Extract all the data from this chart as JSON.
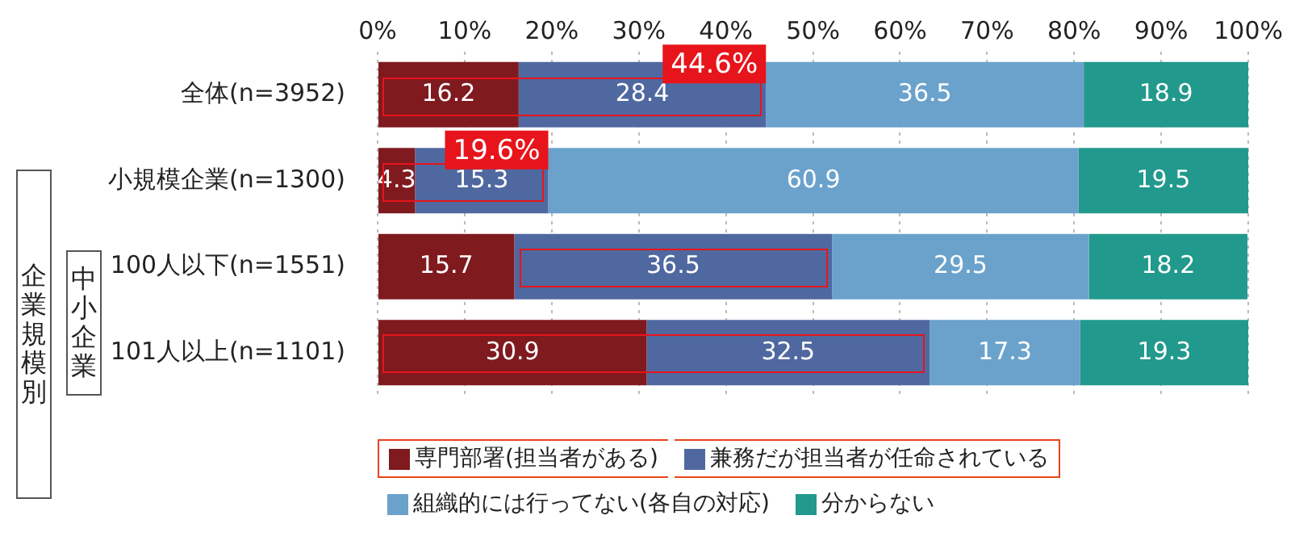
{
  "chart_data": {
    "type": "bar",
    "orientation": "horizontal",
    "stacked": true,
    "categories": [
      "全体(n=3952)",
      "小規模企業(n=1300)",
      "100人以下(n=1551)",
      "101人以上(n=1101)"
    ],
    "series": [
      {
        "name": "専門部署(担当者がある)",
        "color": "#7f1a1f",
        "values": [
          16.2,
          4.3,
          15.7,
          30.9
        ]
      },
      {
        "name": "兼務だが担当者が任命されている",
        "color": "#5068a0",
        "values": [
          28.4,
          15.3,
          36.5,
          32.5
        ]
      },
      {
        "name": "組織的には行ってない(各自の対応)",
        "color": "#6aa2cc",
        "values": [
          36.5,
          60.9,
          29.5,
          17.3
        ]
      },
      {
        "name": "分からない",
        "color": "#21998c",
        "values": [
          18.9,
          19.5,
          18.2,
          19.3
        ]
      }
    ],
    "xlim": [
      0,
      100
    ],
    "xticks": [
      {
        "value": 0,
        "label": "0%"
      },
      {
        "value": 10,
        "label": "10%"
      },
      {
        "value": 20,
        "label": "20%"
      },
      {
        "value": 30,
        "label": "30%"
      },
      {
        "value": 40,
        "label": "40%"
      },
      {
        "value": 50,
        "label": "50%"
      },
      {
        "value": 60,
        "label": "60%"
      },
      {
        "value": 70,
        "label": "70%"
      },
      {
        "value": 80,
        "label": "80%"
      },
      {
        "value": 90,
        "label": "90%"
      },
      {
        "value": 100,
        "label": "100%"
      }
    ],
    "grid": "x",
    "legend": "bottom",
    "data_labels": true,
    "annotations": [
      {
        "text": "44.6%",
        "x": 44.6,
        "y": "全体(n=3952)"
      },
      {
        "text": "19.6%",
        "x": 19.6,
        "y": "小規模企業(n=1300)"
      },
      "企業規模別",
      "中小企業"
    ]
  }
}
